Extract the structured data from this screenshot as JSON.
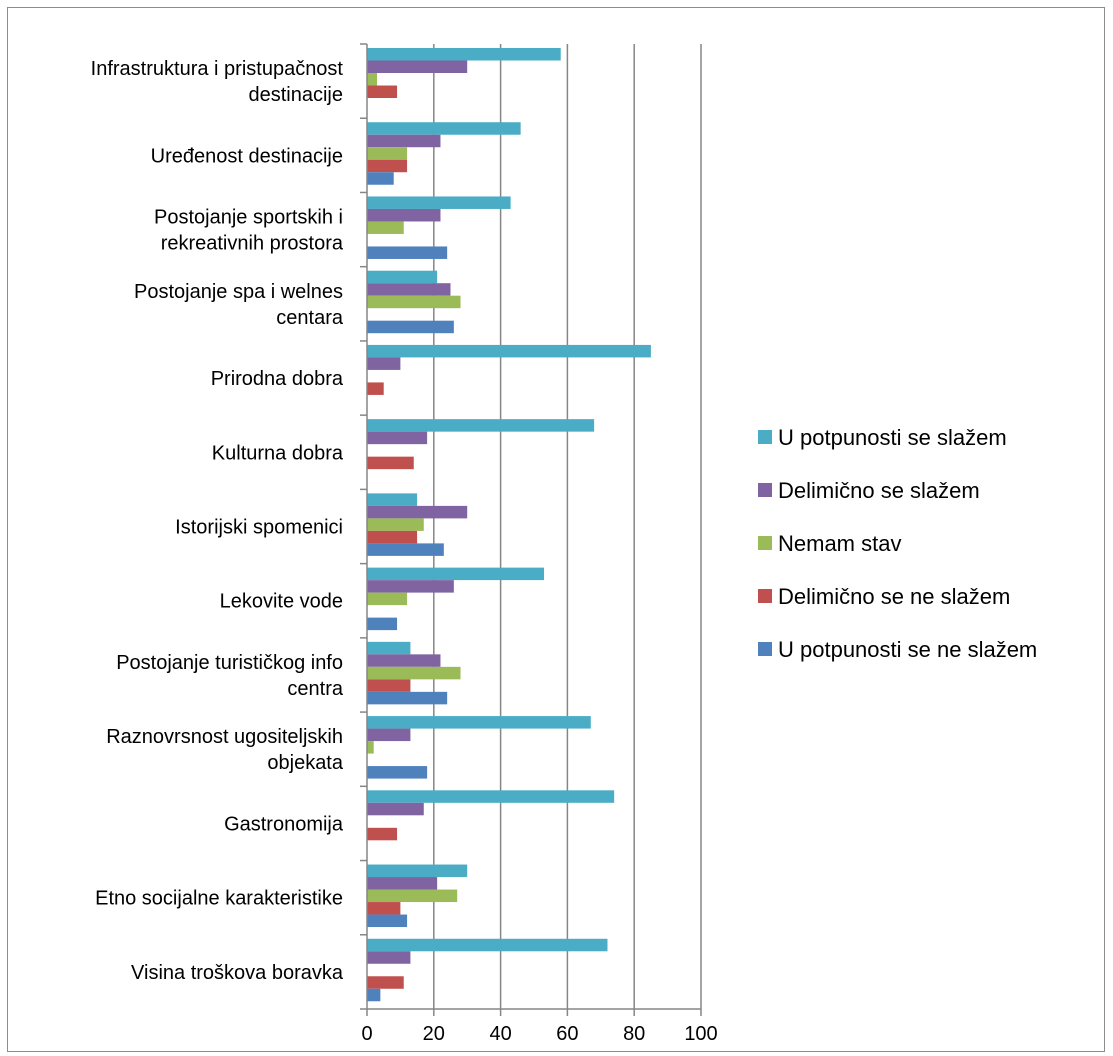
{
  "chart_data": {
    "type": "bar",
    "orientation": "horizontal",
    "categories": [
      "Infrastruktura i pristupačnost destinacije",
      "Uređenost destinacije",
      "Postojanje sportskih i rekreativnih prostora",
      "Postojanje spa i welnes centara",
      "Prirodna dobra",
      "Kulturna dobra",
      "Istorijski spomenici",
      "Lekovite vode",
      "Postojanje turističkog info centra",
      "Raznovrsnost ugositeljskih objekata",
      "Gastronomija",
      "Etno socijalne karakteristike",
      "Visina troškova boravka"
    ],
    "category_lines": [
      [
        "Infrastruktura i pristupačnost",
        "destinacije"
      ],
      [
        "Uređenost destinacije"
      ],
      [
        "Postojanje sportskih i",
        "rekreativnih prostora"
      ],
      [
        "Postojanje spa i welnes",
        "centara"
      ],
      [
        "Prirodna dobra"
      ],
      [
        "Kulturna dobra"
      ],
      [
        "Istorijski spomenici"
      ],
      [
        "Lekovite vode"
      ],
      [
        "Postojanje turističkog info",
        "centra"
      ],
      [
        "Raznovrsnost ugositeljskih",
        "objekata"
      ],
      [
        "Gastronomija"
      ],
      [
        "Etno socijalne karakteristike"
      ],
      [
        "Visina troškova boravka"
      ]
    ],
    "series": [
      {
        "name": "U potpunosti se slažem",
        "color": "#4BACC6",
        "values": [
          58,
          46,
          43,
          21,
          85,
          68,
          15,
          53,
          13,
          67,
          74,
          30,
          72
        ]
      },
      {
        "name": "Delimično se slažem",
        "color": "#8064A2",
        "values": [
          30,
          22,
          22,
          25,
          10,
          18,
          30,
          26,
          22,
          13,
          17,
          21,
          13
        ]
      },
      {
        "name": "Nemam stav",
        "color": "#9BBB59",
        "values": [
          3,
          12,
          11,
          28,
          0,
          0,
          17,
          12,
          28,
          2,
          0,
          27,
          0
        ]
      },
      {
        "name": "Delimično se ne slažem",
        "color": "#C0504D",
        "values": [
          9,
          12,
          0,
          0,
          5,
          14,
          15,
          0,
          13,
          0,
          9,
          10,
          11
        ]
      },
      {
        "name": "U potpunosti se ne slažem",
        "color": "#4F81BD",
        "values": [
          0,
          8,
          24,
          26,
          0,
          0,
          23,
          9,
          24,
          18,
          0,
          12,
          4
        ]
      }
    ],
    "xlim": [
      0,
      100
    ],
    "xticks": [
      "0",
      "20",
      "40",
      "60",
      "80",
      "100"
    ],
    "grid": "vertical",
    "legend": "right",
    "title": "",
    "xlabel": "",
    "ylabel": ""
  }
}
